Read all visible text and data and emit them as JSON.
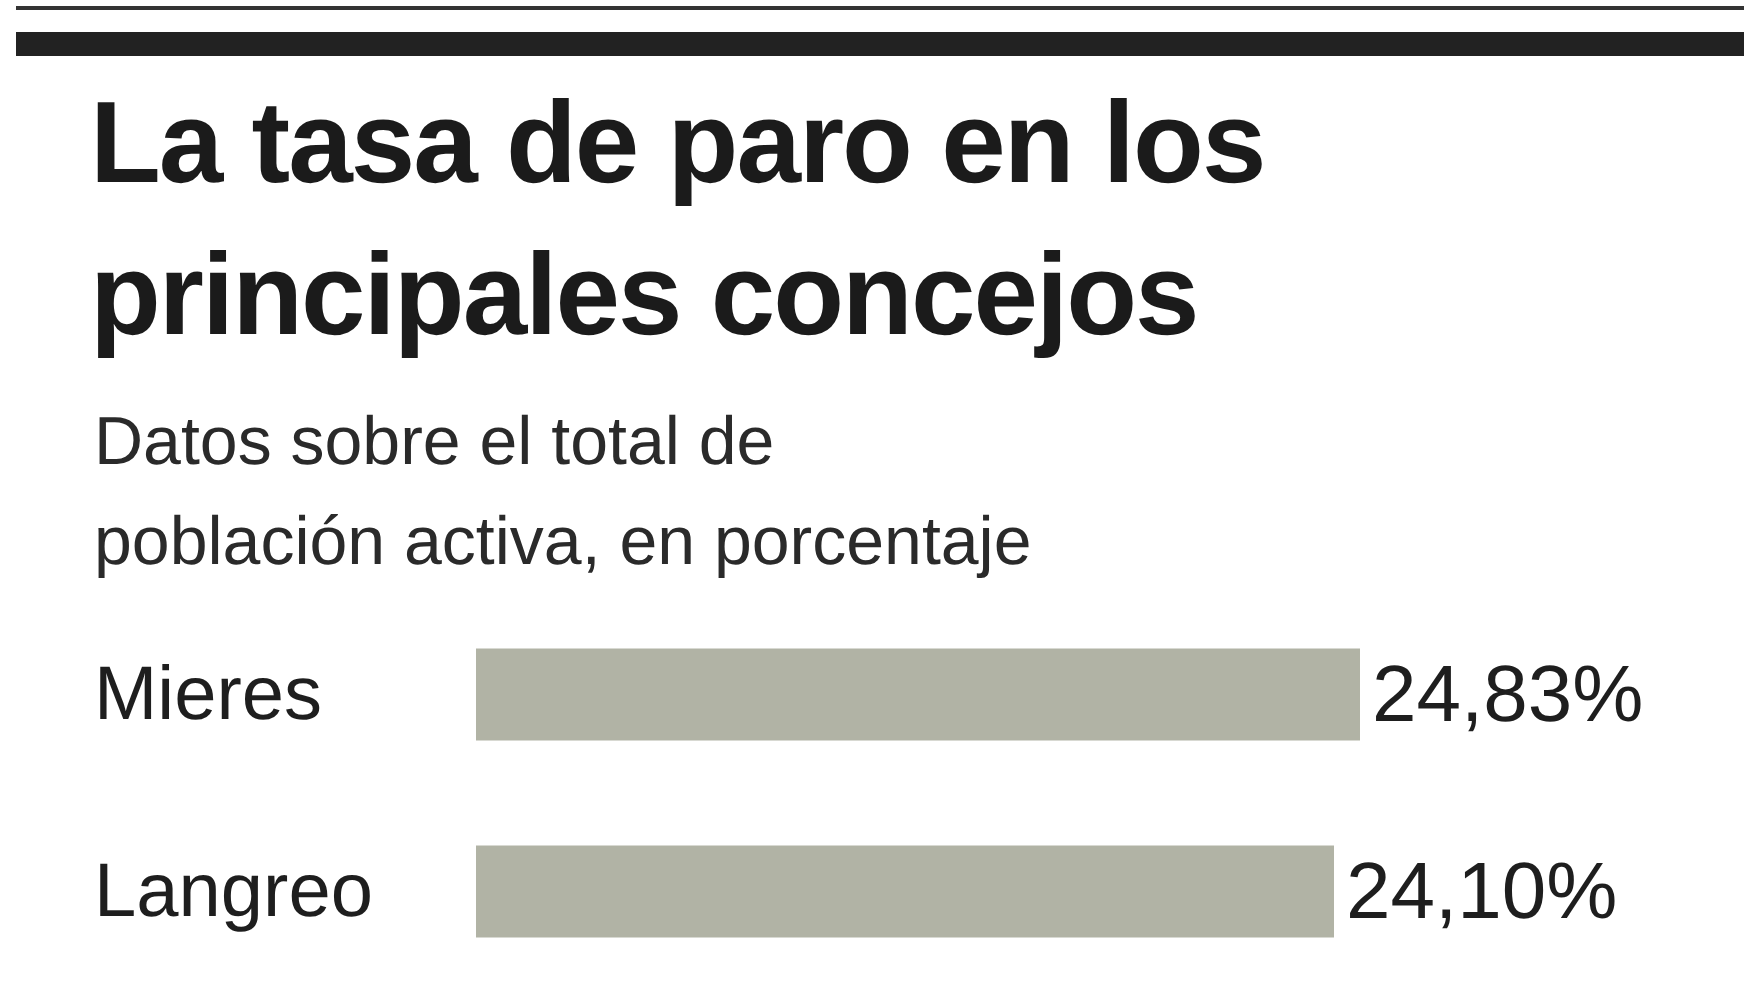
{
  "chart_data": {
    "type": "bar",
    "orientation": "horizontal",
    "title": "La tasa de paro en los principales concejos",
    "subtitle": "Datos sobre el total de población activa, en porcentaje",
    "categories": [
      "Mieres",
      "Langreo"
    ],
    "values": [
      24.83,
      24.1
    ],
    "color": "#b1b3a5",
    "value_labels": [
      "24,83%",
      "24,10%"
    ]
  }
}
